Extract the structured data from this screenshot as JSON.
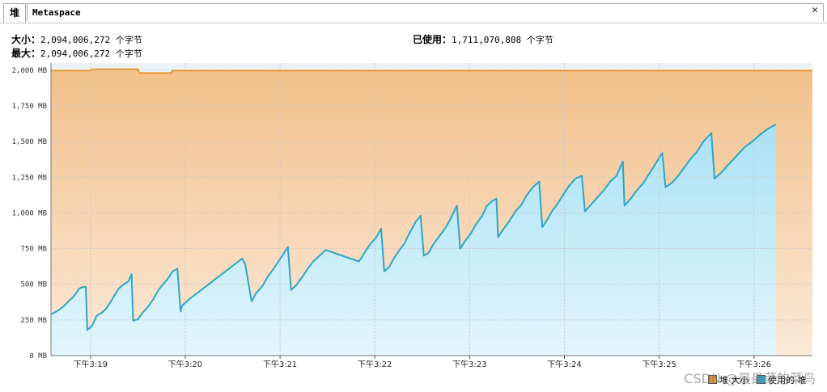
{
  "tabs": [
    {
      "label": "堆",
      "active": true
    },
    {
      "label": "Metaspace",
      "active": false
    }
  ],
  "close_symbol": "✕",
  "stats": {
    "size_label": "大小：",
    "size_value": "2,094,006,272 个字节",
    "max_label": "最大：",
    "max_value": "2,094,006,272 个字节",
    "used_label": "已使用：",
    "used_value": "1,711,070,808 个字节"
  },
  "watermark": "CSDN @最最菜的菜鸟",
  "chart_data": {
    "type": "area",
    "x_unit": "time",
    "x_ticks": [
      "下午3:19",
      "下午3:20",
      "下午3:21",
      "下午3:22",
      "下午3:23",
      "下午3:24",
      "下午3:25",
      "下午3:26"
    ],
    "y_ticks": [
      "0 MB",
      "250 MB",
      "500 MB",
      "750 MB",
      "1,000 MB",
      "1,250 MB",
      "1,500 MB",
      "1,750 MB",
      "2,000 MB"
    ],
    "ylim": [
      0,
      2050
    ],
    "xlim": [
      "3:18:35",
      "3:26:37"
    ],
    "grid": true,
    "legend_position": "bottom-right",
    "colors": {
      "size_line": "#e8962e",
      "size_fill_top": "#f2c08a",
      "size_fill_bottom": "#fbe9d8",
      "used_line": "#2ea6c8",
      "used_fill_top": "#a9e1f4",
      "used_fill_bottom": "#e3f6fd",
      "grid": "#c9c9c9",
      "plot_bg": "#eaf3f8"
    },
    "series": [
      {
        "name": "堆 大小",
        "points": [
          [
            "3:18:35",
            1997
          ],
          [
            "3:18:59",
            1997
          ],
          [
            "3:19:02",
            2007
          ],
          [
            "3:19:30",
            2007
          ],
          [
            "3:19:31",
            1980
          ],
          [
            "3:19:51",
            1980
          ],
          [
            "3:19:52",
            1997
          ],
          [
            "3:26:37",
            1997
          ]
        ]
      },
      {
        "name": "使用的 堆",
        "points": [
          [
            "3:18:35",
            290
          ],
          [
            "3:18:37",
            300
          ],
          [
            "3:18:40",
            320
          ],
          [
            "3:18:43",
            345
          ],
          [
            "3:18:46",
            380
          ],
          [
            "3:18:49",
            410
          ],
          [
            "3:18:53",
            470
          ],
          [
            "3:18:55",
            480
          ],
          [
            "3:18:57",
            482
          ],
          [
            "3:18:58",
            180
          ],
          [
            "3:19:01",
            210
          ],
          [
            "3:19:04",
            280
          ],
          [
            "3:19:07",
            300
          ],
          [
            "3:19:10",
            330
          ],
          [
            "3:19:13",
            380
          ],
          [
            "3:19:15",
            420
          ],
          [
            "3:19:18",
            470
          ],
          [
            "3:19:21",
            500
          ],
          [
            "3:19:24",
            520
          ],
          [
            "3:19:26",
            570
          ],
          [
            "3:19:27",
            245
          ],
          [
            "3:19:30",
            255
          ],
          [
            "3:19:33",
            300
          ],
          [
            "3:19:37",
            350
          ],
          [
            "3:19:40",
            400
          ],
          [
            "3:19:43",
            460
          ],
          [
            "3:19:46",
            500
          ],
          [
            "3:19:49",
            540
          ],
          [
            "3:19:52",
            590
          ],
          [
            "3:19:55",
            610
          ],
          [
            "3:19:57",
            310
          ],
          [
            "3:19:58",
            350
          ],
          [
            "3:20:03",
            400
          ],
          [
            "3:20:36",
            680
          ],
          [
            "3:20:38",
            640
          ],
          [
            "3:20:42",
            380
          ],
          [
            "3:20:45",
            440
          ],
          [
            "3:20:49",
            490
          ],
          [
            "3:20:52",
            550
          ],
          [
            "3:20:56",
            610
          ],
          [
            "3:20:59",
            660
          ],
          [
            "3:21:02",
            710
          ],
          [
            "3:21:05",
            760
          ],
          [
            "3:21:07",
            460
          ],
          [
            "3:21:10",
            490
          ],
          [
            "3:21:14",
            550
          ],
          [
            "3:21:17",
            600
          ],
          [
            "3:21:21",
            660
          ],
          [
            "3:21:25",
            700
          ],
          [
            "3:21:29",
            740
          ],
          [
            "3:21:50",
            660
          ],
          [
            "3:21:54",
            730
          ],
          [
            "3:21:57",
            780
          ],
          [
            "3:22:01",
            830
          ],
          [
            "3:22:04",
            890
          ],
          [
            "3:22:06",
            590
          ],
          [
            "3:22:09",
            620
          ],
          [
            "3:22:12",
            680
          ],
          [
            "3:22:15",
            730
          ],
          [
            "3:22:19",
            790
          ],
          [
            "3:22:22",
            860
          ],
          [
            "3:22:26",
            940
          ],
          [
            "3:22:29",
            980
          ],
          [
            "3:22:31",
            700
          ],
          [
            "3:22:34",
            720
          ],
          [
            "3:22:37",
            780
          ],
          [
            "3:22:41",
            840
          ],
          [
            "3:22:45",
            900
          ],
          [
            "3:22:48",
            960
          ],
          [
            "3:22:52",
            1050
          ],
          [
            "3:22:54",
            750
          ],
          [
            "3:22:57",
            800
          ],
          [
            "3:23:01",
            860
          ],
          [
            "3:23:04",
            920
          ],
          [
            "3:23:08",
            980
          ],
          [
            "3:23:11",
            1050
          ],
          [
            "3:23:14",
            1080
          ],
          [
            "3:23:17",
            1100
          ],
          [
            "3:23:18",
            830
          ],
          [
            "3:23:21",
            880
          ],
          [
            "3:23:25",
            940
          ],
          [
            "3:23:29",
            1010
          ],
          [
            "3:23:33",
            1060
          ],
          [
            "3:23:36",
            1120
          ],
          [
            "3:23:40",
            1180
          ],
          [
            "3:23:44",
            1220
          ],
          [
            "3:23:46",
            900
          ],
          [
            "3:23:49",
            950
          ],
          [
            "3:23:52",
            1010
          ],
          [
            "3:23:56",
            1070
          ],
          [
            "3:24:00",
            1140
          ],
          [
            "3:24:03",
            1190
          ],
          [
            "3:24:07",
            1240
          ],
          [
            "3:24:11",
            1260
          ],
          [
            "3:24:13",
            1010
          ],
          [
            "3:24:17",
            1060
          ],
          [
            "3:24:21",
            1110
          ],
          [
            "3:24:25",
            1160
          ],
          [
            "3:24:29",
            1220
          ],
          [
            "3:24:33",
            1260
          ],
          [
            "3:24:37",
            1360
          ],
          [
            "3:24:38",
            1050
          ],
          [
            "3:24:42",
            1100
          ],
          [
            "3:24:46",
            1160
          ],
          [
            "3:24:50",
            1210
          ],
          [
            "3:24:54",
            1280
          ],
          [
            "3:24:58",
            1350
          ],
          [
            "3:25:02",
            1420
          ],
          [
            "3:25:04",
            1180
          ],
          [
            "3:25:08",
            1210
          ],
          [
            "3:25:12",
            1260
          ],
          [
            "3:25:16",
            1320
          ],
          [
            "3:25:20",
            1380
          ],
          [
            "3:25:24",
            1430
          ],
          [
            "3:25:28",
            1500
          ],
          [
            "3:25:33",
            1560
          ],
          [
            "3:25:35",
            1240
          ],
          [
            "3:25:39",
            1280
          ],
          [
            "3:25:44",
            1340
          ],
          [
            "3:25:49",
            1400
          ],
          [
            "3:25:54",
            1460
          ],
          [
            "3:25:59",
            1500
          ],
          [
            "3:26:04",
            1550
          ],
          [
            "3:26:09",
            1590
          ],
          [
            "3:26:14",
            1620
          ]
        ]
      }
    ]
  }
}
